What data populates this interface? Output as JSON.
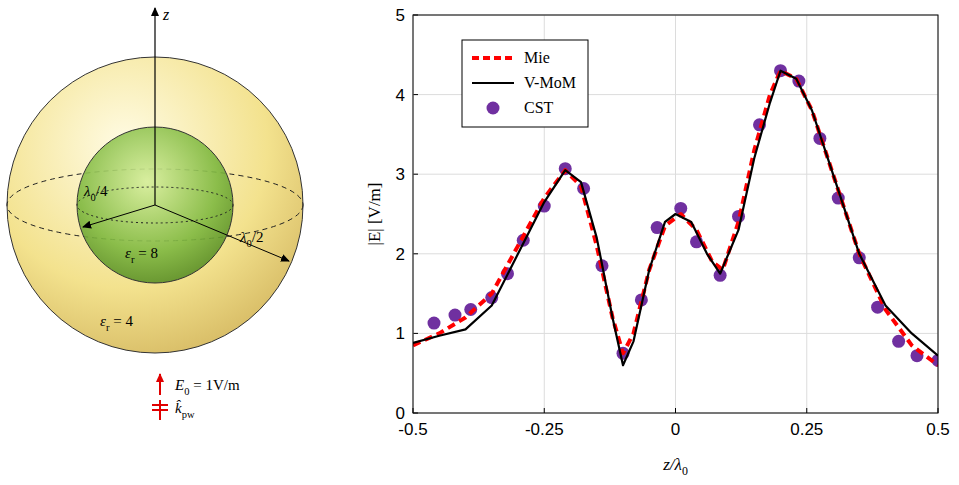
{
  "chart_data": {
    "type": "line",
    "x_label": {
      "main": "z/λ",
      "sub": "0"
    },
    "y_label": "|E| [V/m]",
    "xlim": [
      -0.5,
      0.5
    ],
    "xticks": [
      -0.5,
      -0.25,
      0,
      0.25,
      0.5
    ],
    "ylim": [
      0,
      5
    ],
    "yticks": [
      0,
      1,
      2,
      3,
      4,
      5
    ],
    "grid": true,
    "legend": "upper left",
    "series": [
      {
        "name": "Mie",
        "color": "#ff0000",
        "type": "line",
        "line_style": "dashed",
        "x": [
          -0.5,
          -0.45,
          -0.4,
          -0.35,
          -0.3,
          -0.25,
          -0.21,
          -0.18,
          -0.15,
          -0.12,
          -0.1,
          -0.08,
          -0.05,
          -0.02,
          0.01,
          0.04,
          0.07,
          0.09,
          0.12,
          0.15,
          0.18,
          0.2,
          0.23,
          0.26,
          0.3,
          0.35,
          0.4,
          0.45,
          0.5
        ],
        "values": [
          0.85,
          1.0,
          1.2,
          1.5,
          2.1,
          2.7,
          3.05,
          2.85,
          2.1,
          1.2,
          0.75,
          1.0,
          1.8,
          2.35,
          2.5,
          2.3,
          1.9,
          1.8,
          2.4,
          3.3,
          4.0,
          4.3,
          4.2,
          3.8,
          3.0,
          2.0,
          1.3,
          0.85,
          0.6
        ]
      },
      {
        "name": "V-MoM",
        "color": "#000000",
        "type": "line",
        "line_style": "solid",
        "x": [
          -0.5,
          -0.45,
          -0.4,
          -0.35,
          -0.3,
          -0.25,
          -0.21,
          -0.18,
          -0.15,
          -0.12,
          -0.1,
          -0.08,
          -0.05,
          -0.02,
          0.0,
          0.03,
          0.06,
          0.085,
          0.12,
          0.15,
          0.18,
          0.2,
          0.23,
          0.26,
          0.3,
          0.35,
          0.4,
          0.45,
          0.5
        ],
        "values": [
          0.88,
          0.97,
          1.05,
          1.35,
          2.0,
          2.65,
          3.05,
          2.9,
          2.2,
          1.2,
          0.6,
          0.9,
          1.8,
          2.4,
          2.5,
          2.4,
          2.0,
          1.75,
          2.3,
          3.2,
          3.9,
          4.3,
          4.2,
          3.8,
          3.0,
          2.0,
          1.35,
          1.0,
          0.72
        ]
      },
      {
        "name": "CST",
        "color": "#7030a0",
        "type": "scatter",
        "marker": "circle",
        "x": [
          -0.46,
          -0.42,
          -0.39,
          -0.35,
          -0.32,
          -0.29,
          -0.25,
          -0.21,
          -0.175,
          -0.14,
          -0.1,
          -0.065,
          -0.035,
          0.01,
          0.04,
          0.085,
          0.12,
          0.16,
          0.2,
          0.235,
          0.275,
          0.31,
          0.35,
          0.385,
          0.425,
          0.46,
          0.5
        ],
        "values": [
          1.13,
          1.23,
          1.3,
          1.45,
          1.75,
          2.17,
          2.6,
          3.07,
          2.82,
          1.85,
          0.75,
          1.42,
          2.33,
          2.57,
          2.15,
          1.73,
          2.47,
          3.62,
          4.3,
          4.17,
          3.45,
          2.7,
          1.95,
          1.33,
          0.9,
          0.72,
          0.66
        ]
      }
    ]
  },
  "diagram": {
    "axis_label": "z",
    "inner_radius": {
      "main": "λ",
      "sub": "0",
      "tail": "/4"
    },
    "outer_radius": {
      "main": "λ",
      "sub": "0",
      "tail": "/2"
    },
    "inner_permittivity": {
      "main": "ε",
      "sub": "r",
      "tail": " = 8"
    },
    "outer_permittivity": {
      "main": "ε",
      "sub": "r",
      "tail": " = 4"
    },
    "field": {
      "main": "E",
      "sub": "0",
      "tail": " = 1V/m"
    },
    "wave_vector": {
      "main": "k̂",
      "sub": "pw",
      "tail": ""
    }
  }
}
